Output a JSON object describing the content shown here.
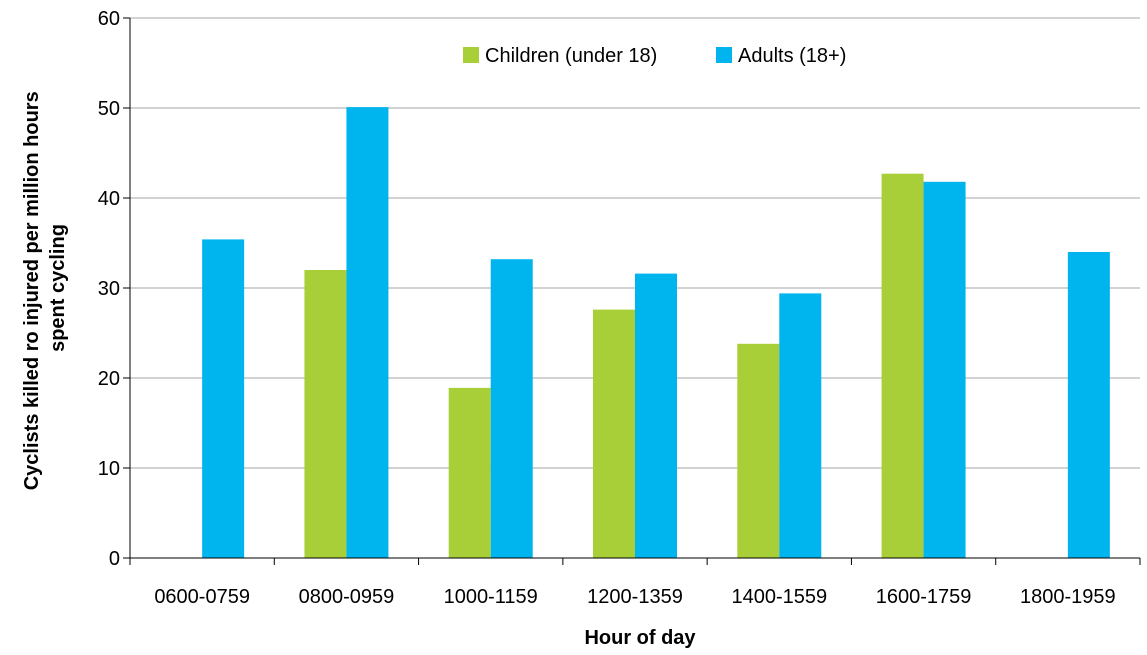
{
  "chart_data": {
    "type": "bar",
    "title": "",
    "xlabel": "Hour of day",
    "ylabel_line1": "Cyclists killed ro injured per million hours",
    "ylabel_line2": "spent cycling",
    "categories": [
      "0600-0759",
      "0800-0959",
      "1000-1159",
      "1200-1359",
      "1400-1559",
      "1600-1759",
      "1800-1959"
    ],
    "series": [
      {
        "name": "Children (under 18)",
        "color": "#a9cf38",
        "values": [
          null,
          32.0,
          18.9,
          27.6,
          23.8,
          42.7,
          null
        ]
      },
      {
        "name": "Adults (18+)",
        "color": "#00b5ee",
        "values": [
          35.4,
          50.1,
          33.2,
          31.6,
          29.4,
          41.8,
          34.0
        ]
      }
    ],
    "ylim": [
      0,
      60
    ],
    "yticks": [
      0,
      10,
      20,
      30,
      40,
      50,
      60
    ],
    "grid": true,
    "legend_position": "top-center"
  }
}
